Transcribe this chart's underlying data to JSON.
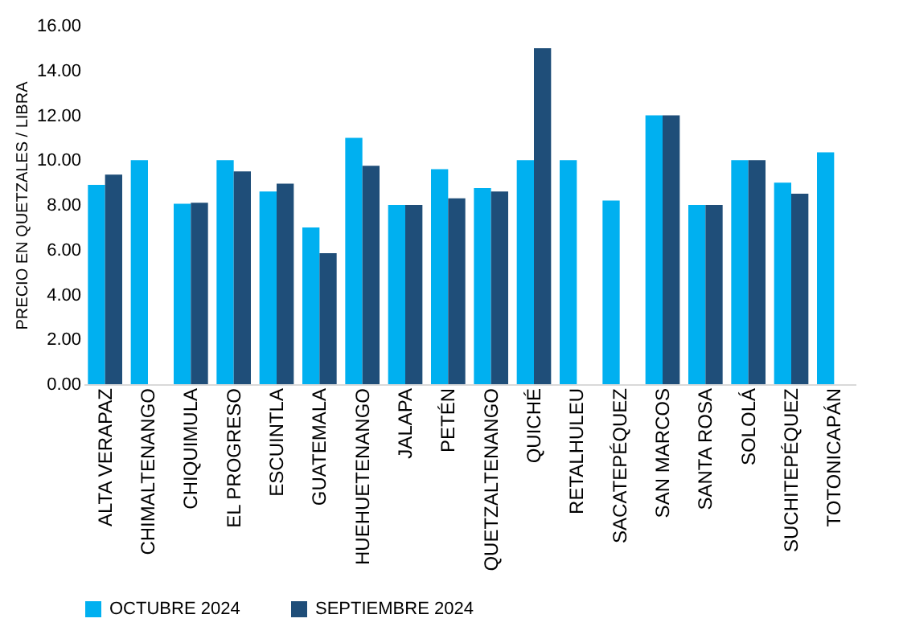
{
  "chart_data": {
    "type": "bar",
    "ylabel": "PRECIO EN QUETZALES / LIBRA",
    "categories": [
      "ALTA VERAPAZ",
      "CHIMALTENANGO",
      "CHIQUIMULA",
      "EL PROGRESO",
      "ESCUINTLA",
      "GUATEMALA",
      "HUEHUETENANGO",
      "JALAPA",
      "PETÉN",
      "QUETZALTENANGO",
      "QUICHÉ",
      "RETALHULEU",
      "SACATEPÉQUEZ",
      "SAN MARCOS",
      "SANTA ROSA",
      "SOLOLÁ",
      "SUCHITEPÉQUEZ",
      "TOTONICAPÁN"
    ],
    "series": [
      {
        "name": "OCTUBRE 2024",
        "color": "#00b0f0",
        "values": [
          8.9,
          10,
          8.05,
          10,
          8.6,
          7.0,
          11.0,
          8.0,
          9.6,
          8.75,
          10,
          10,
          8.2,
          12,
          8,
          10,
          9,
          10.35
        ]
      },
      {
        "name": "SEPTIEMBRE 2024",
        "color": "#1f4e79",
        "values": [
          9.35,
          null,
          8.1,
          9.5,
          8.95,
          5.85,
          9.75,
          8.0,
          8.3,
          8.6,
          15,
          null,
          null,
          12,
          8,
          10,
          8.5,
          null
        ]
      }
    ],
    "ylim": [
      0,
      16
    ],
    "yticks": [
      {
        "value": 0,
        "label": "0.00"
      },
      {
        "value": 2,
        "label": "2.00"
      },
      {
        "value": 4,
        "label": "4.00"
      },
      {
        "value": 6,
        "label": "6.00"
      },
      {
        "value": 8,
        "label": "8.00"
      },
      {
        "value": 10,
        "label": "10.00"
      },
      {
        "value": 12,
        "label": "12.00"
      },
      {
        "value": 14,
        "label": "14.00"
      },
      {
        "value": 16,
        "label": "16.00"
      }
    ],
    "grid": false,
    "legend": "bottom"
  }
}
